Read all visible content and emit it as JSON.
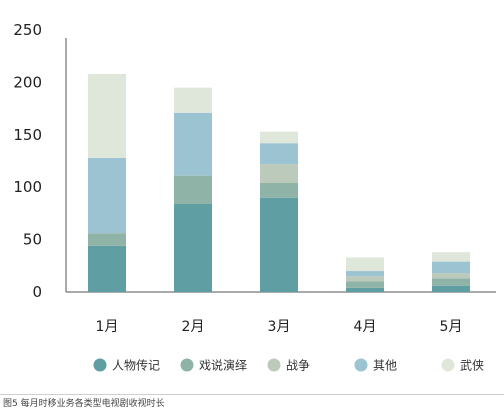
{
  "chart_data": {
    "type": "bar",
    "stacked": true,
    "categories": [
      "1月",
      "2月",
      "3月",
      "4月",
      "5月"
    ],
    "series": [
      {
        "name": "人物传记",
        "color": "#5f9ea3",
        "values": [
          44,
          84,
          90,
          4,
          6
        ]
      },
      {
        "name": "戏说演绎",
        "color": "#8fb3a6",
        "values": [
          12,
          27,
          14,
          6,
          7
        ]
      },
      {
        "name": "战争",
        "color": "#bccabc",
        "values": [
          0,
          0,
          18,
          5,
          5
        ]
      },
      {
        "name": "其他",
        "color": "#9cc3d1",
        "values": [
          72,
          60,
          20,
          5,
          11
        ]
      },
      {
        "name": "武侠",
        "color": "#dfe6da",
        "values": [
          80,
          24,
          11,
          13,
          9
        ]
      }
    ],
    "ylim": [
      0,
      250
    ],
    "yticks": [
      "0",
      "50",
      "100",
      "150",
      "200",
      "250"
    ],
    "ytick_values": [
      0,
      50,
      100,
      150,
      200,
      250
    ],
    "grid": false,
    "legend_position": "bottom"
  },
  "caption": "图5 每月时移业务各类型电视剧收视时长"
}
